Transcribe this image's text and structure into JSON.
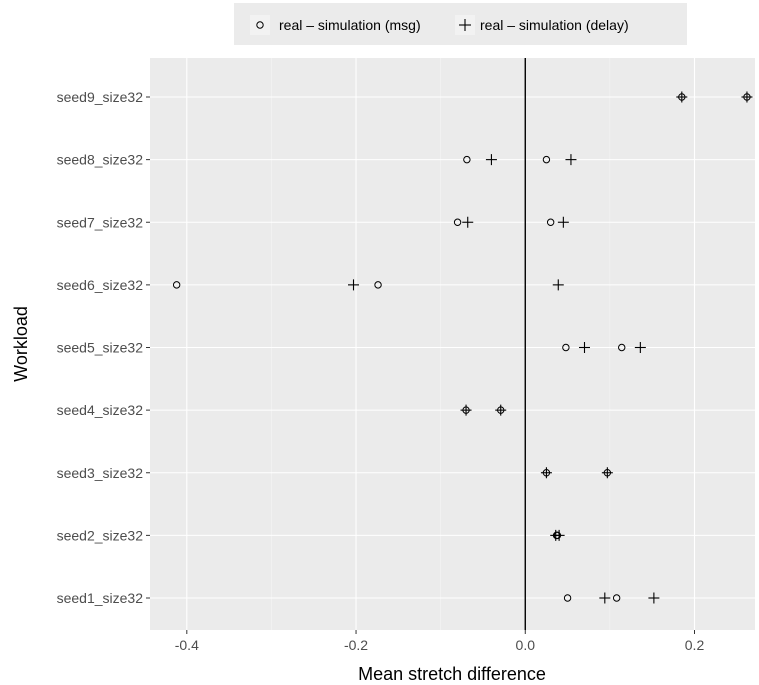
{
  "chart_data": {
    "type": "scatter",
    "orientation": "horizontal",
    "xlabel": "Mean stretch difference",
    "ylabel": "Workload",
    "xlim": [
      -0.4435,
      0.2715
    ],
    "x_ticks": [
      -0.4,
      -0.2,
      0.0,
      0.2
    ],
    "x_tick_labels": [
      "-0.4",
      "-0.2",
      "0.0",
      "0.2"
    ],
    "categories": [
      "seed1_size32",
      "seed2_size32",
      "seed3_size32",
      "seed4_size32",
      "seed5_size32",
      "seed6_size32",
      "seed7_size32",
      "seed8_size32",
      "seed9_size32"
    ],
    "vline_x": 0,
    "legend_position": "top",
    "colors": {
      "panel": "#ebebeb",
      "grid": "#ffffff",
      "points": "#000000"
    },
    "series": [
      {
        "name": "real – simulation (msg)",
        "marker": "circle",
        "points": [
          {
            "category": "seed1_size32",
            "x": 0.05
          },
          {
            "category": "seed1_size32",
            "x": 0.108
          },
          {
            "category": "seed2_size32",
            "x": 0.038
          },
          {
            "category": "seed2_size32",
            "x": 0.037
          },
          {
            "category": "seed3_size32",
            "x": 0.025
          },
          {
            "category": "seed3_size32",
            "x": 0.097
          },
          {
            "category": "seed4_size32",
            "x": -0.07
          },
          {
            "category": "seed4_size32",
            "x": -0.029
          },
          {
            "category": "seed5_size32",
            "x": 0.048
          },
          {
            "category": "seed5_size32",
            "x": 0.114
          },
          {
            "category": "seed6_size32",
            "x": -0.412
          },
          {
            "category": "seed6_size32",
            "x": -0.174
          },
          {
            "category": "seed7_size32",
            "x": -0.08
          },
          {
            "category": "seed7_size32",
            "x": 0.03
          },
          {
            "category": "seed8_size32",
            "x": -0.069
          },
          {
            "category": "seed8_size32",
            "x": 0.025
          },
          {
            "category": "seed9_size32",
            "x": 0.185
          },
          {
            "category": "seed9_size32",
            "x": 0.262
          }
        ]
      },
      {
        "name": "real – simulation (delay)",
        "marker": "plus",
        "points": [
          {
            "category": "seed1_size32",
            "x": 0.094
          },
          {
            "category": "seed1_size32",
            "x": 0.152
          },
          {
            "category": "seed2_size32",
            "x": 0.036
          },
          {
            "category": "seed2_size32",
            "x": 0.04
          },
          {
            "category": "seed3_size32",
            "x": 0.025
          },
          {
            "category": "seed3_size32",
            "x": 0.097
          },
          {
            "category": "seed4_size32",
            "x": -0.07
          },
          {
            "category": "seed4_size32",
            "x": -0.029
          },
          {
            "category": "seed5_size32",
            "x": 0.07
          },
          {
            "category": "seed5_size32",
            "x": 0.136
          },
          {
            "category": "seed6_size32",
            "x": -0.203
          },
          {
            "category": "seed6_size32",
            "x": 0.039
          },
          {
            "category": "seed7_size32",
            "x": -0.068
          },
          {
            "category": "seed7_size32",
            "x": 0.045
          },
          {
            "category": "seed8_size32",
            "x": -0.04
          },
          {
            "category": "seed8_size32",
            "x": 0.054
          },
          {
            "category": "seed9_size32",
            "x": 0.185
          },
          {
            "category": "seed9_size32",
            "x": 0.262
          }
        ]
      }
    ]
  }
}
